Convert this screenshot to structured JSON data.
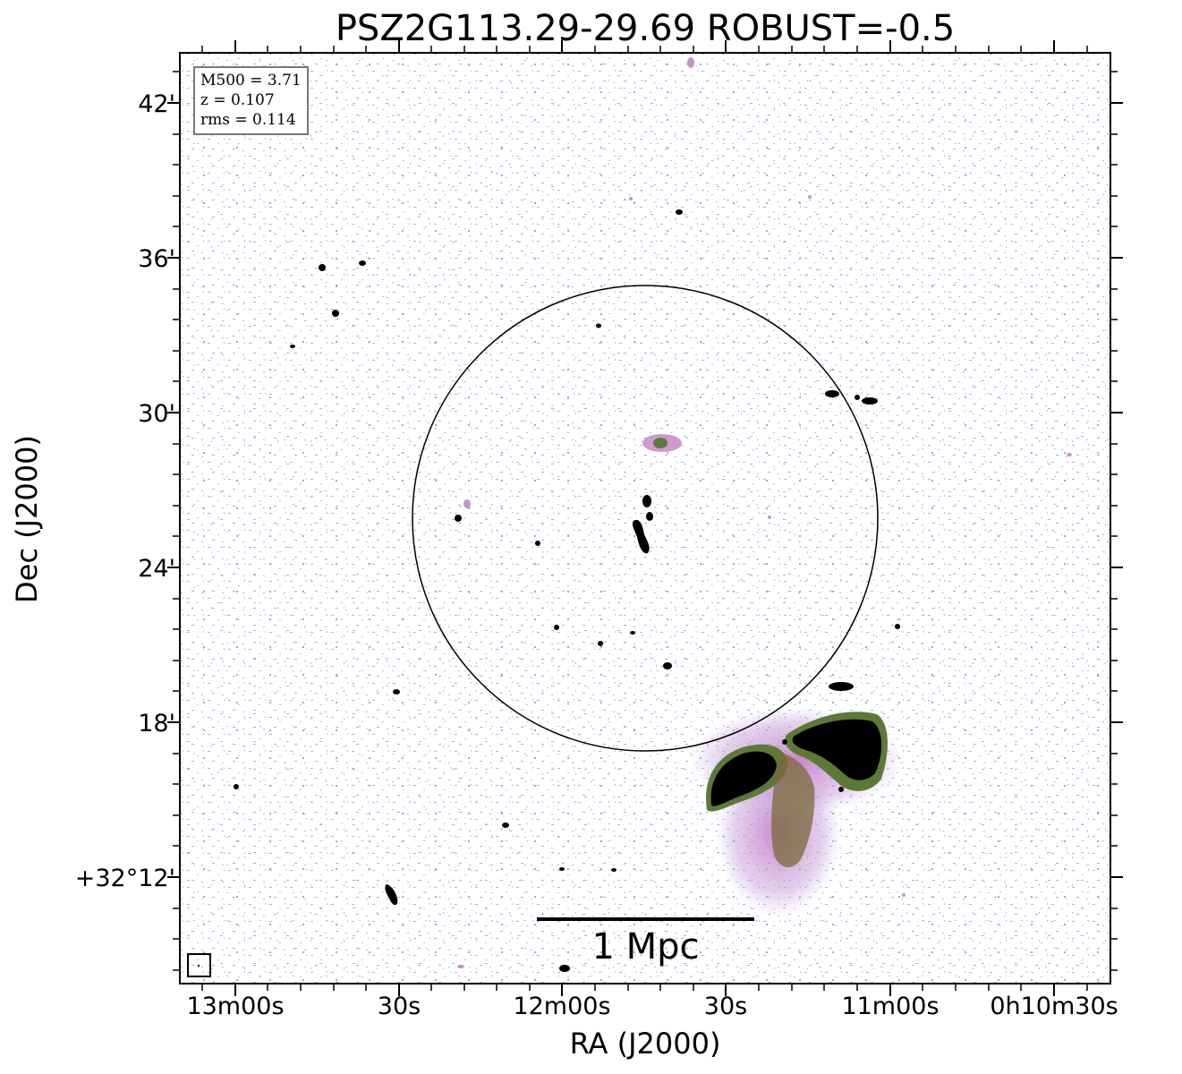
{
  "title": "PSZ2G113.29-29.69 ROBUST=-0.5",
  "axes": {
    "xlabel": "RA (J2000)",
    "ylabel": "Dec (J2000)",
    "xticks": [
      "13m00s",
      "30s",
      "12m00s",
      "30s",
      "11m00s",
      "0h10m30s"
    ],
    "yticks": [
      "42'",
      "36'",
      "30'",
      "24'",
      "18'",
      "+32°12'"
    ]
  },
  "info": {
    "m500": "M500 = 3.71",
    "z": "z = 0.107",
    "rms": "rms = 0.114"
  },
  "scalebar": {
    "label": "1 Mpc"
  },
  "colors": {
    "background": "#ffffff",
    "noise_blue": "#a9b6e6",
    "noise_pink": "#c48bc8",
    "source_green": "#5b7a36",
    "source_core": "#000000",
    "circle": "#000000"
  }
}
